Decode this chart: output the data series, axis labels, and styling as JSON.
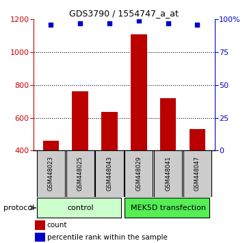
{
  "title": "GDS3790 / 1554747_a_at",
  "samples": [
    "GSM448023",
    "GSM448025",
    "GSM448043",
    "GSM448029",
    "GSM448041",
    "GSM448047"
  ],
  "counts": [
    460,
    760,
    635,
    1110,
    720,
    530
  ],
  "percentile_ranks": [
    96,
    97,
    97,
    99,
    97,
    96
  ],
  "ylim_left": [
    400,
    1200
  ],
  "ylim_right": [
    0,
    100
  ],
  "yticks_left": [
    400,
    600,
    800,
    1000,
    1200
  ],
  "yticks_right": [
    0,
    25,
    50,
    75,
    100
  ],
  "ytick_right_labels": [
    "0",
    "25",
    "50",
    "75",
    "100%"
  ],
  "bar_color": "#bb0000",
  "dot_color": "#0000cc",
  "control_label": "control",
  "mek5d_label": "MEK5D transfection",
  "protocol_label": "protocol",
  "legend_count": "count",
  "legend_percentile": "percentile rank within the sample",
  "control_color": "#ccffcc",
  "mek5d_color": "#55ee55",
  "sample_bg_color": "#cccccc",
  "right_axis_color": "#0000cc",
  "left_axis_color": "#cc0000",
  "title_fontsize": 9,
  "bar_width": 0.55
}
